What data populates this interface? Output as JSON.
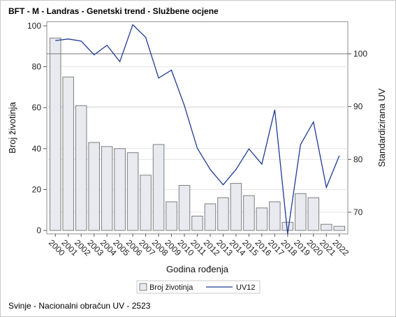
{
  "title": "BFT - M - Landras - Genetski trend - Službene ocjene",
  "footnote": "Svinje - Nacionalni obračun UV - 2523",
  "chart_data": {
    "type": "bar+line",
    "xlabel": "Godina rođenja",
    "ylabel_left": "Broj životinja",
    "ylabel_right": "Standardizirana UV",
    "categories": [
      "2000",
      "2001",
      "2002",
      "2003",
      "2004",
      "2005",
      "2006",
      "2007",
      "2008",
      "2009",
      "2010",
      "2011",
      "2012",
      "2013",
      "2014",
      "2015",
      "2016",
      "2017",
      "2018",
      "2019",
      "2020",
      "2021",
      "2022"
    ],
    "y_left": {
      "min": 0,
      "max": 100,
      "ticks": [
        0,
        20,
        40,
        60,
        80,
        100
      ]
    },
    "y_right": {
      "min": 65,
      "max": 105,
      "ticks": [
        70,
        80,
        90,
        100
      ]
    },
    "reference_line_right": 100,
    "grid": "horizontal",
    "legend_position": "bottom",
    "series": [
      {
        "name": "Broj životinja",
        "type": "bar",
        "axis": "left",
        "color": "#e8eaf0",
        "edge": "#7d7d7d",
        "values": [
          94,
          75,
          61,
          43,
          41,
          40,
          38,
          27,
          42,
          14,
          22,
          7,
          13,
          16,
          23,
          17,
          11,
          14,
          4,
          18,
          16,
          3,
          2
        ]
      },
      {
        "name": "UV12",
        "type": "line",
        "axis": "right",
        "color": "#1f3a93",
        "values": [
          102.5,
          102.8,
          102.4,
          99.8,
          101.6,
          98.5,
          105.5,
          103.1,
          95.4,
          96.9,
          90.2,
          82.1,
          78.1,
          75.2,
          78.1,
          82.0,
          79.1,
          89.4,
          65.9,
          82.8,
          87.1,
          74.7,
          80.7
        ]
      }
    ]
  }
}
